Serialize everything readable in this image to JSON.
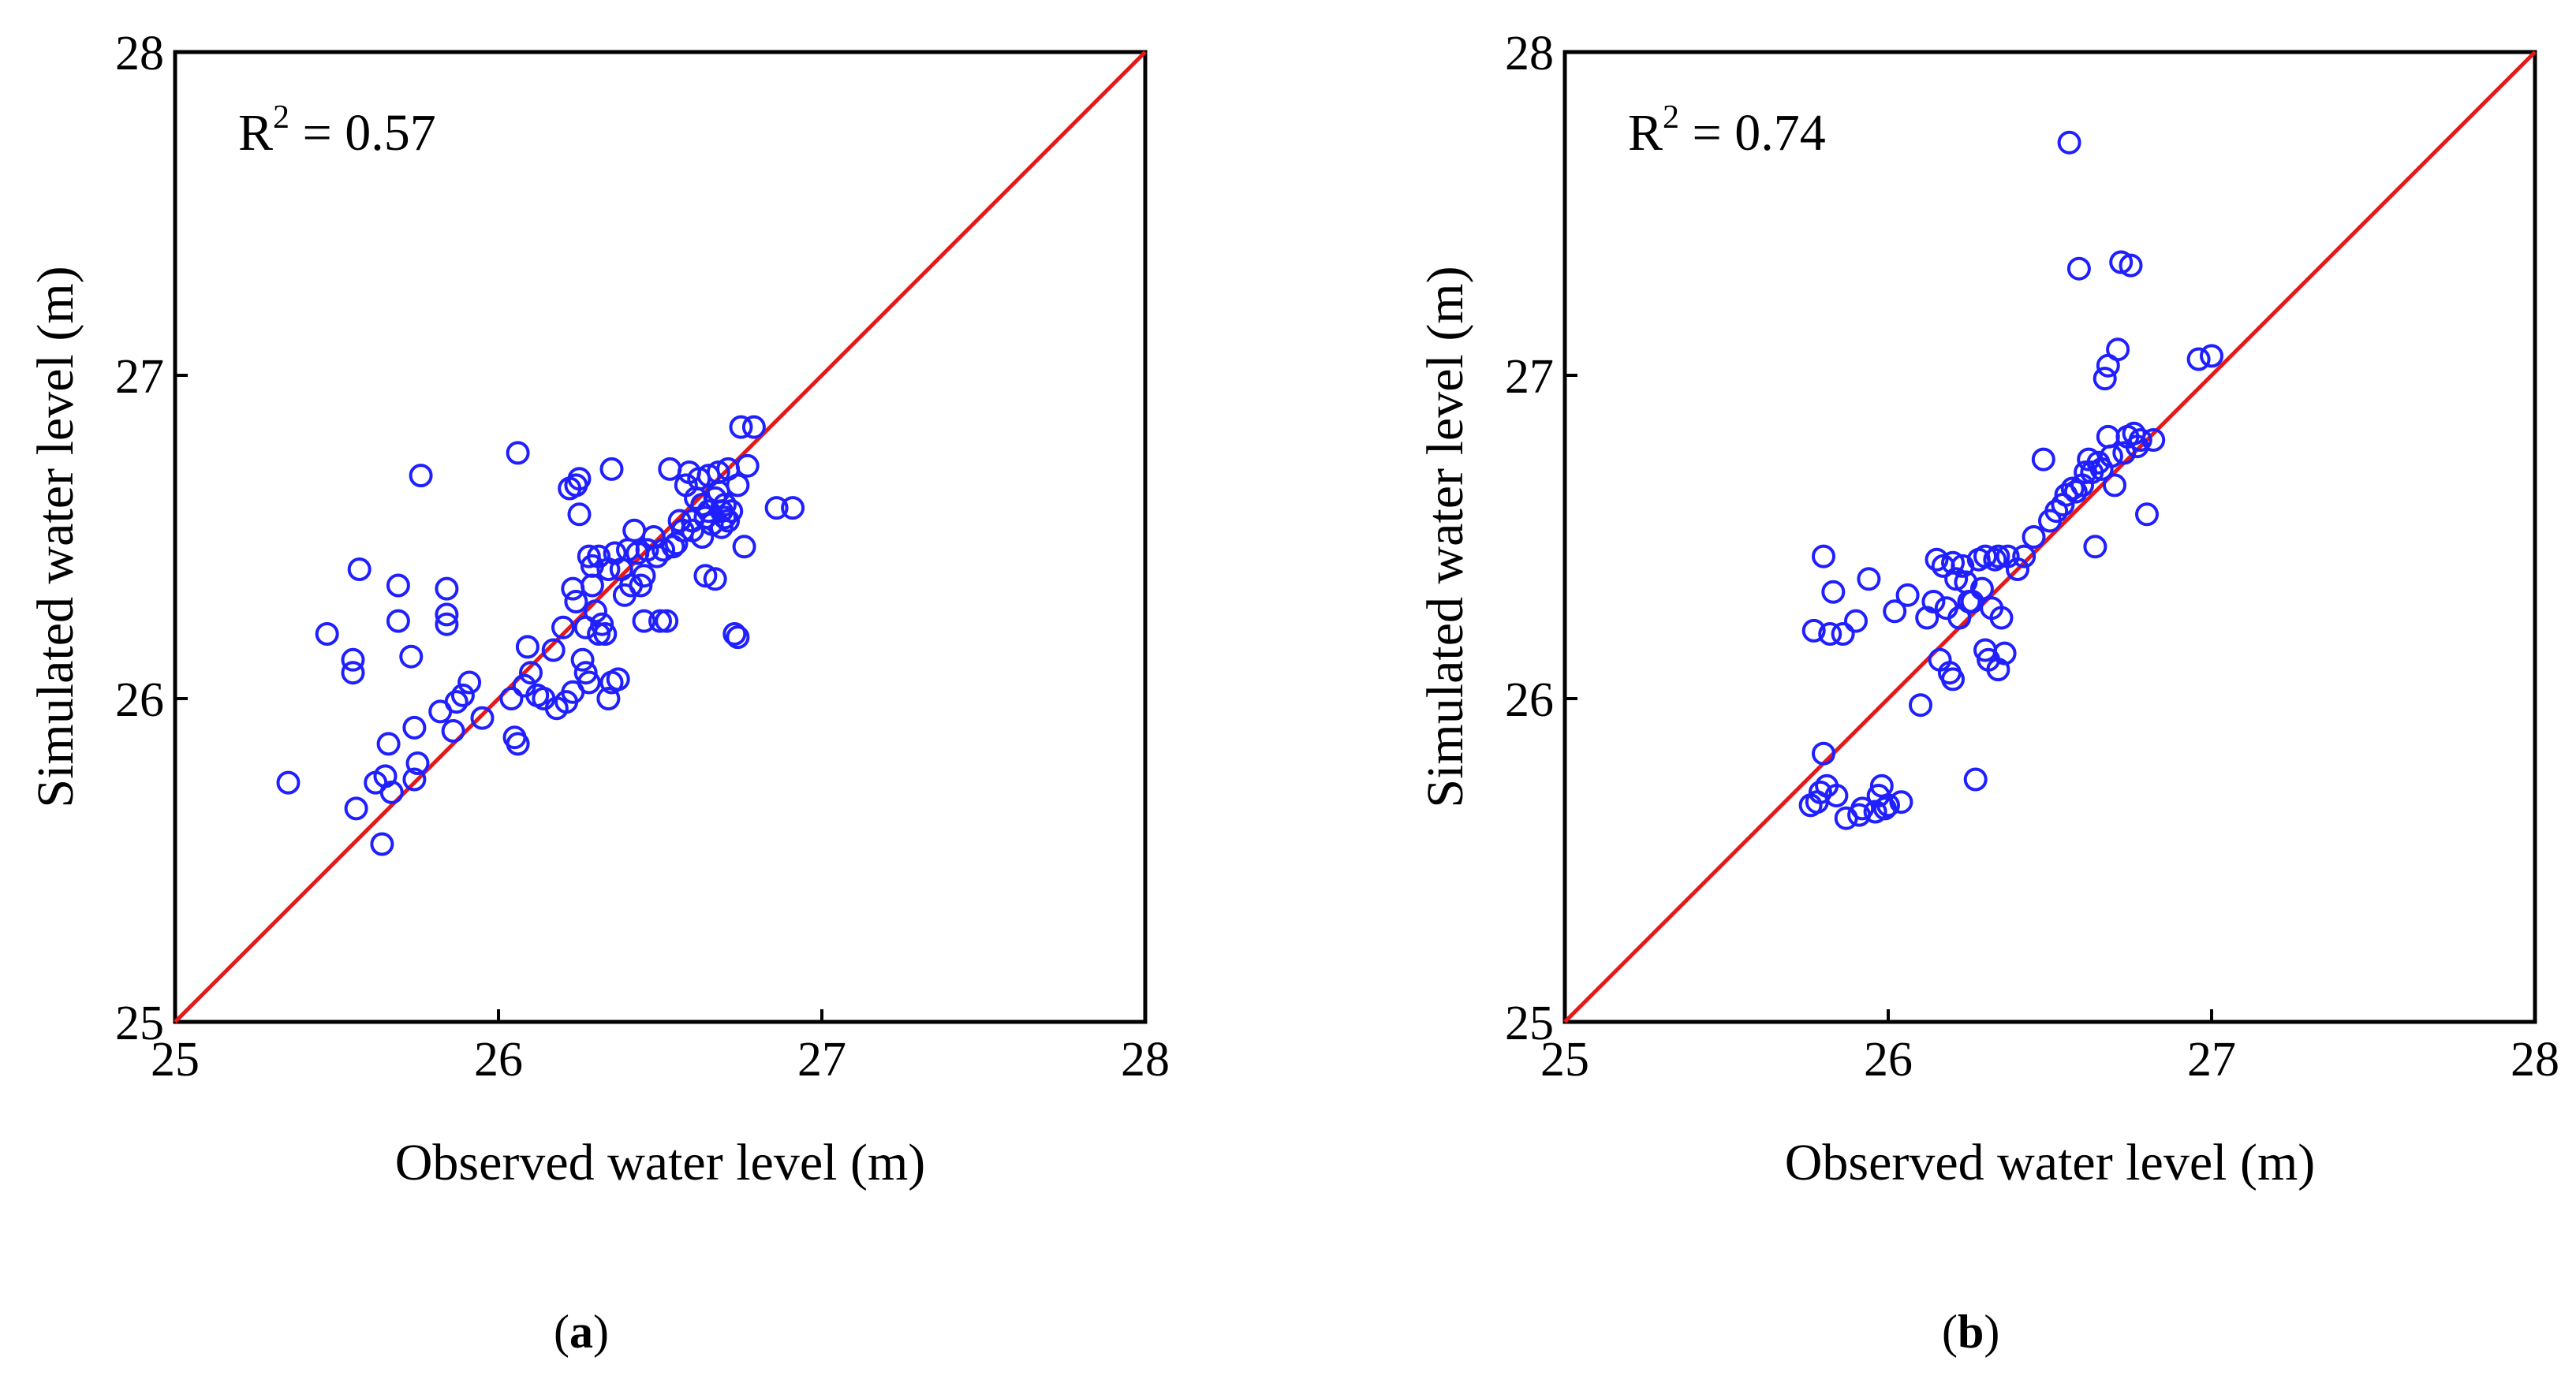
{
  "colors": {
    "marker": "#1f1fff",
    "identity_line": "#e31a1c",
    "axis": "#000000"
  },
  "chart_data": [
    {
      "type": "scatter",
      "panel_label": "a",
      "annotation": {
        "text": "R",
        "sup": "2",
        "rest": " = 0.57"
      },
      "xlabel": "Observed water level (m)",
      "ylabel": "Simulated water level (m)",
      "xlim": [
        25,
        28
      ],
      "ylim": [
        25,
        28
      ],
      "xticks": [
        25,
        26,
        27,
        28
      ],
      "yticks": [
        25,
        26,
        27,
        28
      ],
      "reference_line": {
        "from": [
          25,
          25
        ],
        "to": [
          28,
          28
        ]
      },
      "points": [
        [
          25.35,
          25.74
        ],
        [
          25.47,
          26.2
        ],
        [
          25.55,
          26.12
        ],
        [
          25.55,
          26.08
        ],
        [
          25.56,
          25.66
        ],
        [
          25.57,
          26.4
        ],
        [
          25.62,
          25.74
        ],
        [
          25.64,
          25.55
        ],
        [
          25.65,
          25.76
        ],
        [
          25.66,
          25.86
        ],
        [
          25.67,
          25.71
        ],
        [
          25.69,
          26.35
        ],
        [
          25.69,
          26.24
        ],
        [
          25.73,
          26.13
        ],
        [
          25.74,
          25.91
        ],
        [
          25.74,
          25.75
        ],
        [
          25.75,
          25.8
        ],
        [
          25.76,
          26.69
        ],
        [
          25.82,
          25.96
        ],
        [
          25.84,
          26.34
        ],
        [
          25.84,
          26.26
        ],
        [
          25.84,
          26.23
        ],
        [
          25.86,
          25.9
        ],
        [
          25.87,
          25.99
        ],
        [
          25.89,
          26.01
        ],
        [
          25.91,
          26.05
        ],
        [
          25.95,
          25.94
        ],
        [
          26.04,
          26.0
        ],
        [
          26.05,
          25.88
        ],
        [
          26.06,
          25.86
        ],
        [
          26.06,
          26.76
        ],
        [
          26.08,
          26.04
        ],
        [
          26.09,
          26.16
        ],
        [
          26.1,
          26.08
        ],
        [
          26.12,
          26.01
        ],
        [
          26.14,
          26.0
        ],
        [
          26.17,
          26.15
        ],
        [
          26.18,
          25.97
        ],
        [
          26.2,
          26.22
        ],
        [
          26.21,
          25.99
        ],
        [
          26.22,
          26.65
        ],
        [
          26.23,
          26.02
        ],
        [
          26.23,
          26.34
        ],
        [
          26.24,
          26.3
        ],
        [
          26.24,
          26.66
        ],
        [
          26.25,
          26.68
        ],
        [
          26.25,
          26.57
        ],
        [
          26.26,
          26.12
        ],
        [
          26.27,
          26.08
        ],
        [
          26.27,
          26.22
        ],
        [
          26.28,
          26.05
        ],
        [
          26.28,
          26.44
        ],
        [
          26.29,
          26.41
        ],
        [
          26.29,
          26.35
        ],
        [
          26.3,
          26.27
        ],
        [
          26.31,
          26.44
        ],
        [
          26.31,
          26.2
        ],
        [
          26.32,
          26.23
        ],
        [
          26.33,
          26.2
        ],
        [
          26.34,
          26.0
        ],
        [
          26.34,
          26.4
        ],
        [
          26.35,
          26.05
        ],
        [
          26.35,
          26.71
        ],
        [
          26.36,
          26.45
        ],
        [
          26.37,
          26.06
        ],
        [
          26.38,
          26.4
        ],
        [
          26.39,
          26.32
        ],
        [
          26.4,
          26.46
        ],
        [
          26.41,
          26.35
        ],
        [
          26.42,
          26.52
        ],
        [
          26.43,
          26.45
        ],
        [
          26.44,
          26.35
        ],
        [
          26.45,
          26.38
        ],
        [
          26.45,
          26.24
        ],
        [
          26.46,
          26.46
        ],
        [
          26.48,
          26.5
        ],
        [
          26.49,
          26.44
        ],
        [
          26.5,
          26.24
        ],
        [
          26.51,
          26.46
        ],
        [
          26.52,
          26.24
        ],
        [
          26.53,
          26.71
        ],
        [
          26.54,
          26.47
        ],
        [
          26.55,
          26.48
        ],
        [
          26.56,
          26.55
        ],
        [
          26.57,
          26.52
        ],
        [
          26.58,
          26.66
        ],
        [
          26.59,
          26.7
        ],
        [
          26.6,
          26.55
        ],
        [
          26.6,
          26.52
        ],
        [
          26.61,
          26.62
        ],
        [
          26.62,
          26.68
        ],
        [
          26.63,
          26.6
        ],
        [
          26.63,
          26.5
        ],
        [
          26.64,
          26.56
        ],
        [
          26.64,
          26.38
        ],
        [
          26.65,
          26.69
        ],
        [
          26.65,
          26.58
        ],
        [
          26.66,
          26.54
        ],
        [
          26.67,
          26.62
        ],
        [
          26.67,
          26.37
        ],
        [
          26.68,
          26.64
        ],
        [
          26.68,
          26.7
        ],
        [
          26.69,
          26.58
        ],
        [
          26.69,
          26.53
        ],
        [
          26.7,
          26.56
        ],
        [
          26.7,
          26.6
        ],
        [
          26.71,
          26.71
        ],
        [
          26.71,
          26.55
        ],
        [
          26.72,
          26.58
        ],
        [
          26.73,
          26.2
        ],
        [
          26.74,
          26.66
        ],
        [
          26.74,
          26.19
        ],
        [
          26.75,
          26.84
        ],
        [
          26.76,
          26.47
        ],
        [
          26.77,
          26.72
        ],
        [
          26.79,
          26.84
        ],
        [
          26.86,
          26.59
        ],
        [
          26.91,
          26.59
        ]
      ]
    },
    {
      "type": "scatter",
      "panel_label": "b",
      "annotation": {
        "text": "R",
        "sup": "2",
        "rest": " = 0.74"
      },
      "xlabel": "Observed water level (m)",
      "ylabel": "Simulated water level (m)",
      "xlim": [
        25,
        28
      ],
      "ylim": [
        25,
        28
      ],
      "xticks": [
        25,
        26,
        27,
        28
      ],
      "yticks": [
        25,
        26,
        27,
        28
      ],
      "reference_line": {
        "from": [
          25,
          25
        ],
        "to": [
          28,
          28
        ]
      },
      "points": [
        [
          25.76,
          25.67
        ],
        [
          25.77,
          26.21
        ],
        [
          25.78,
          25.68
        ],
        [
          25.79,
          25.71
        ],
        [
          25.8,
          26.44
        ],
        [
          25.8,
          25.83
        ],
        [
          25.81,
          25.73
        ],
        [
          25.82,
          26.2
        ],
        [
          25.83,
          26.33
        ],
        [
          25.84,
          25.7
        ],
        [
          25.86,
          26.2
        ],
        [
          25.87,
          25.63
        ],
        [
          25.9,
          26.24
        ],
        [
          25.91,
          25.64
        ],
        [
          25.92,
          25.66
        ],
        [
          25.94,
          26.37
        ],
        [
          25.96,
          25.65
        ],
        [
          25.97,
          25.7
        ],
        [
          25.98,
          25.73
        ],
        [
          25.99,
          25.66
        ],
        [
          26.0,
          25.67
        ],
        [
          26.02,
          26.27
        ],
        [
          26.04,
          25.68
        ],
        [
          26.06,
          26.32
        ],
        [
          26.1,
          25.98
        ],
        [
          26.12,
          26.25
        ],
        [
          26.14,
          26.3
        ],
        [
          26.15,
          26.43
        ],
        [
          26.16,
          26.12
        ],
        [
          26.17,
          26.41
        ],
        [
          26.18,
          26.28
        ],
        [
          26.19,
          26.08
        ],
        [
          26.2,
          26.06
        ],
        [
          26.2,
          26.42
        ],
        [
          26.21,
          26.37
        ],
        [
          26.22,
          26.25
        ],
        [
          26.23,
          26.41
        ],
        [
          26.24,
          26.36
        ],
        [
          26.25,
          26.3
        ],
        [
          26.26,
          26.3
        ],
        [
          26.27,
          25.75
        ],
        [
          26.28,
          26.43
        ],
        [
          26.29,
          26.34
        ],
        [
          26.3,
          26.15
        ],
        [
          26.3,
          26.44
        ],
        [
          26.31,
          26.12
        ],
        [
          26.32,
          26.28
        ],
        [
          26.33,
          26.43
        ],
        [
          26.34,
          26.09
        ],
        [
          26.34,
          26.44
        ],
        [
          26.35,
          26.25
        ],
        [
          26.36,
          26.14
        ],
        [
          26.37,
          26.44
        ],
        [
          26.4,
          26.4
        ],
        [
          26.42,
          26.44
        ],
        [
          26.45,
          26.5
        ],
        [
          26.48,
          26.74
        ],
        [
          26.5,
          26.55
        ],
        [
          26.52,
          26.58
        ],
        [
          26.54,
          26.6
        ],
        [
          26.55,
          26.63
        ],
        [
          26.56,
          27.72
        ],
        [
          26.57,
          26.65
        ],
        [
          26.58,
          26.64
        ],
        [
          26.59,
          27.33
        ],
        [
          26.6,
          26.66
        ],
        [
          26.61,
          26.7
        ],
        [
          26.62,
          26.74
        ],
        [
          26.63,
          26.7
        ],
        [
          26.64,
          26.47
        ],
        [
          26.65,
          26.73
        ],
        [
          26.66,
          26.71
        ],
        [
          26.67,
          26.99
        ],
        [
          26.68,
          26.81
        ],
        [
          26.68,
          27.03
        ],
        [
          26.69,
          26.75
        ],
        [
          26.7,
          26.66
        ],
        [
          26.71,
          27.08
        ],
        [
          26.72,
          27.35
        ],
        [
          26.73,
          26.76
        ],
        [
          26.74,
          26.81
        ],
        [
          26.75,
          27.34
        ],
        [
          26.76,
          26.82
        ],
        [
          26.77,
          26.78
        ],
        [
          26.78,
          26.8
        ],
        [
          26.8,
          26.57
        ],
        [
          26.82,
          26.8
        ],
        [
          26.96,
          27.05
        ],
        [
          27.0,
          27.06
        ]
      ]
    }
  ]
}
